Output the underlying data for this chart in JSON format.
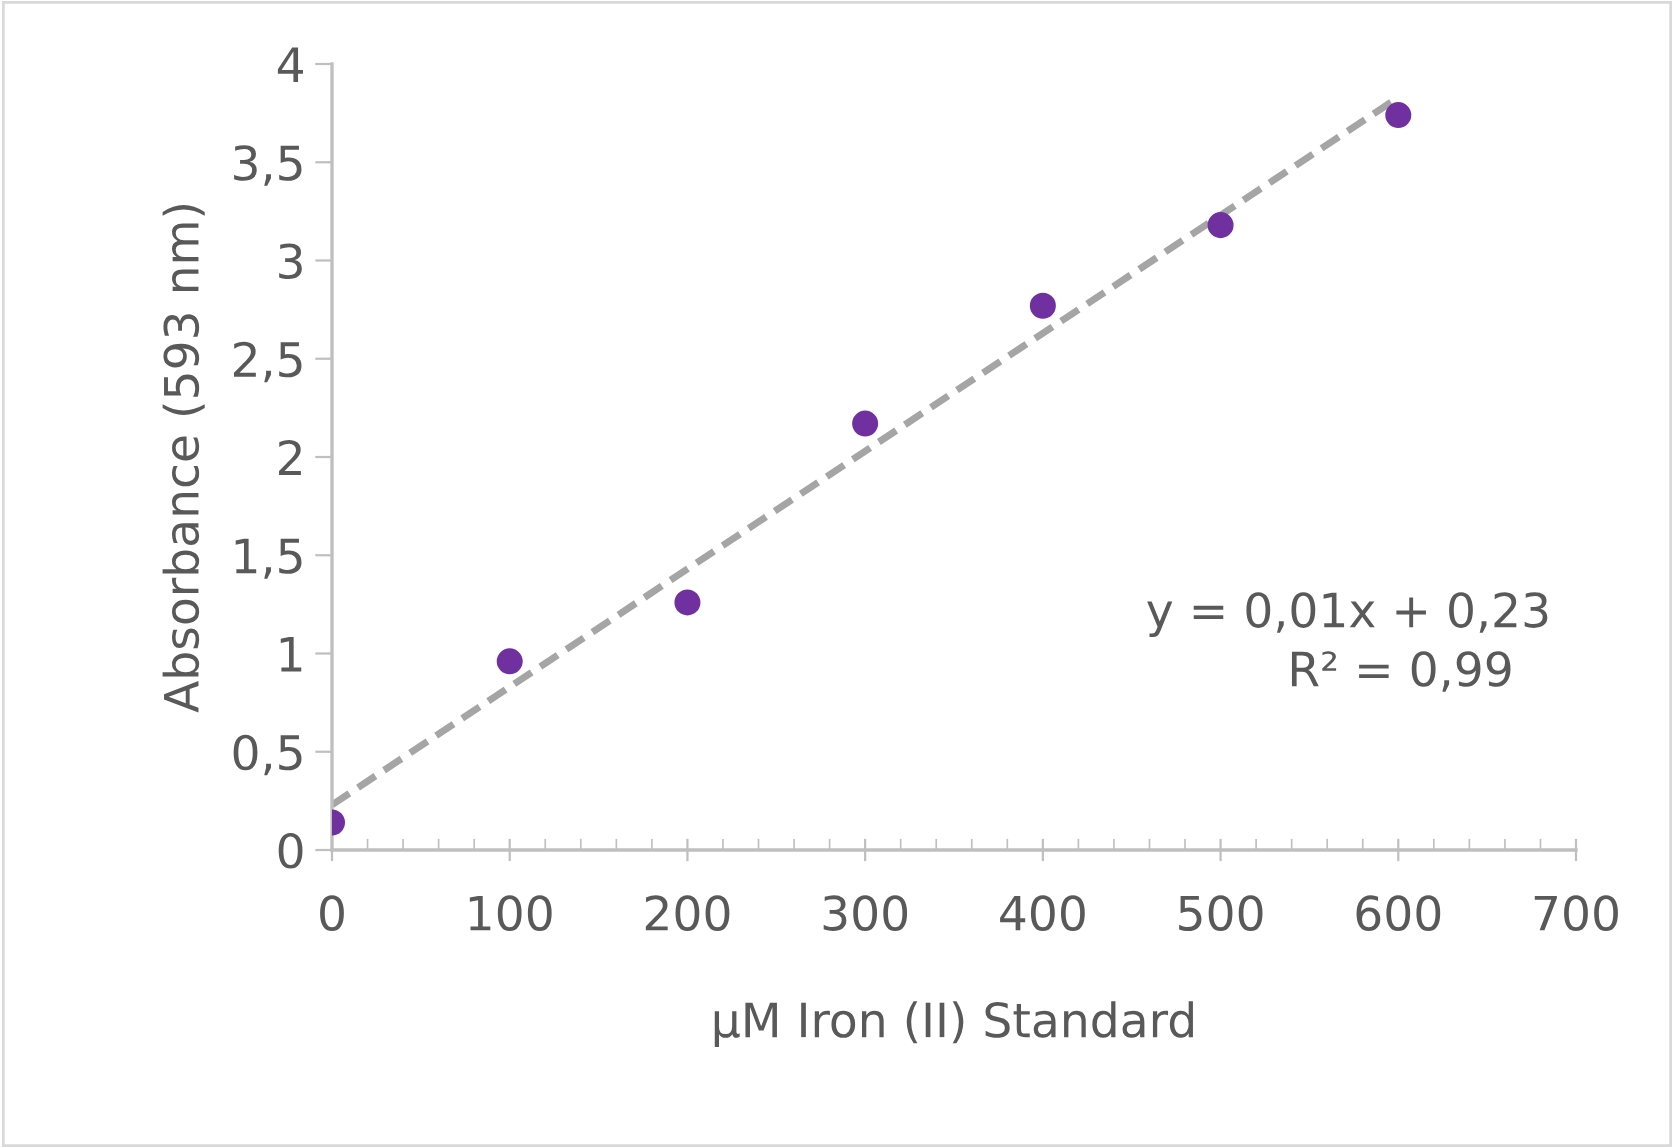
{
  "chart_data": {
    "type": "scatter",
    "xlabel": "µM Iron (II) Standard",
    "ylabel": "Absorbance (593 nm)",
    "x": [
      0,
      100,
      200,
      300,
      400,
      500,
      600
    ],
    "series": [
      {
        "color": "#7030a0",
        "marker": "circle",
        "values": [
          0.14,
          0.96,
          1.26,
          2.17,
          2.77,
          3.18,
          3.74
        ]
      },
      {
        "type": "line",
        "color": "#a5a5a5",
        "marker": "none",
        "line_style": "dashed",
        "x": [
          0,
          600
        ],
        "values": [
          0.23,
          3.83
        ]
      }
    ],
    "xlim": [
      0,
      700
    ],
    "xticks": [
      0,
      100,
      200,
      300,
      400,
      500,
      600,
      700
    ],
    "ylim": [
      0,
      4
    ],
    "yticks": [
      0,
      {
        "value": 0.5,
        "label": "0,5"
      },
      1,
      {
        "value": 1.5,
        "label": "1,5"
      },
      2,
      {
        "value": 2.5,
        "label": "2,5"
      },
      3,
      {
        "value": 3.5,
        "label": "3,5"
      },
      4
    ],
    "grid": false,
    "legend": false,
    "annotations": [
      "y = 0,01x + 0,23",
      "R² = 0,99"
    ]
  }
}
